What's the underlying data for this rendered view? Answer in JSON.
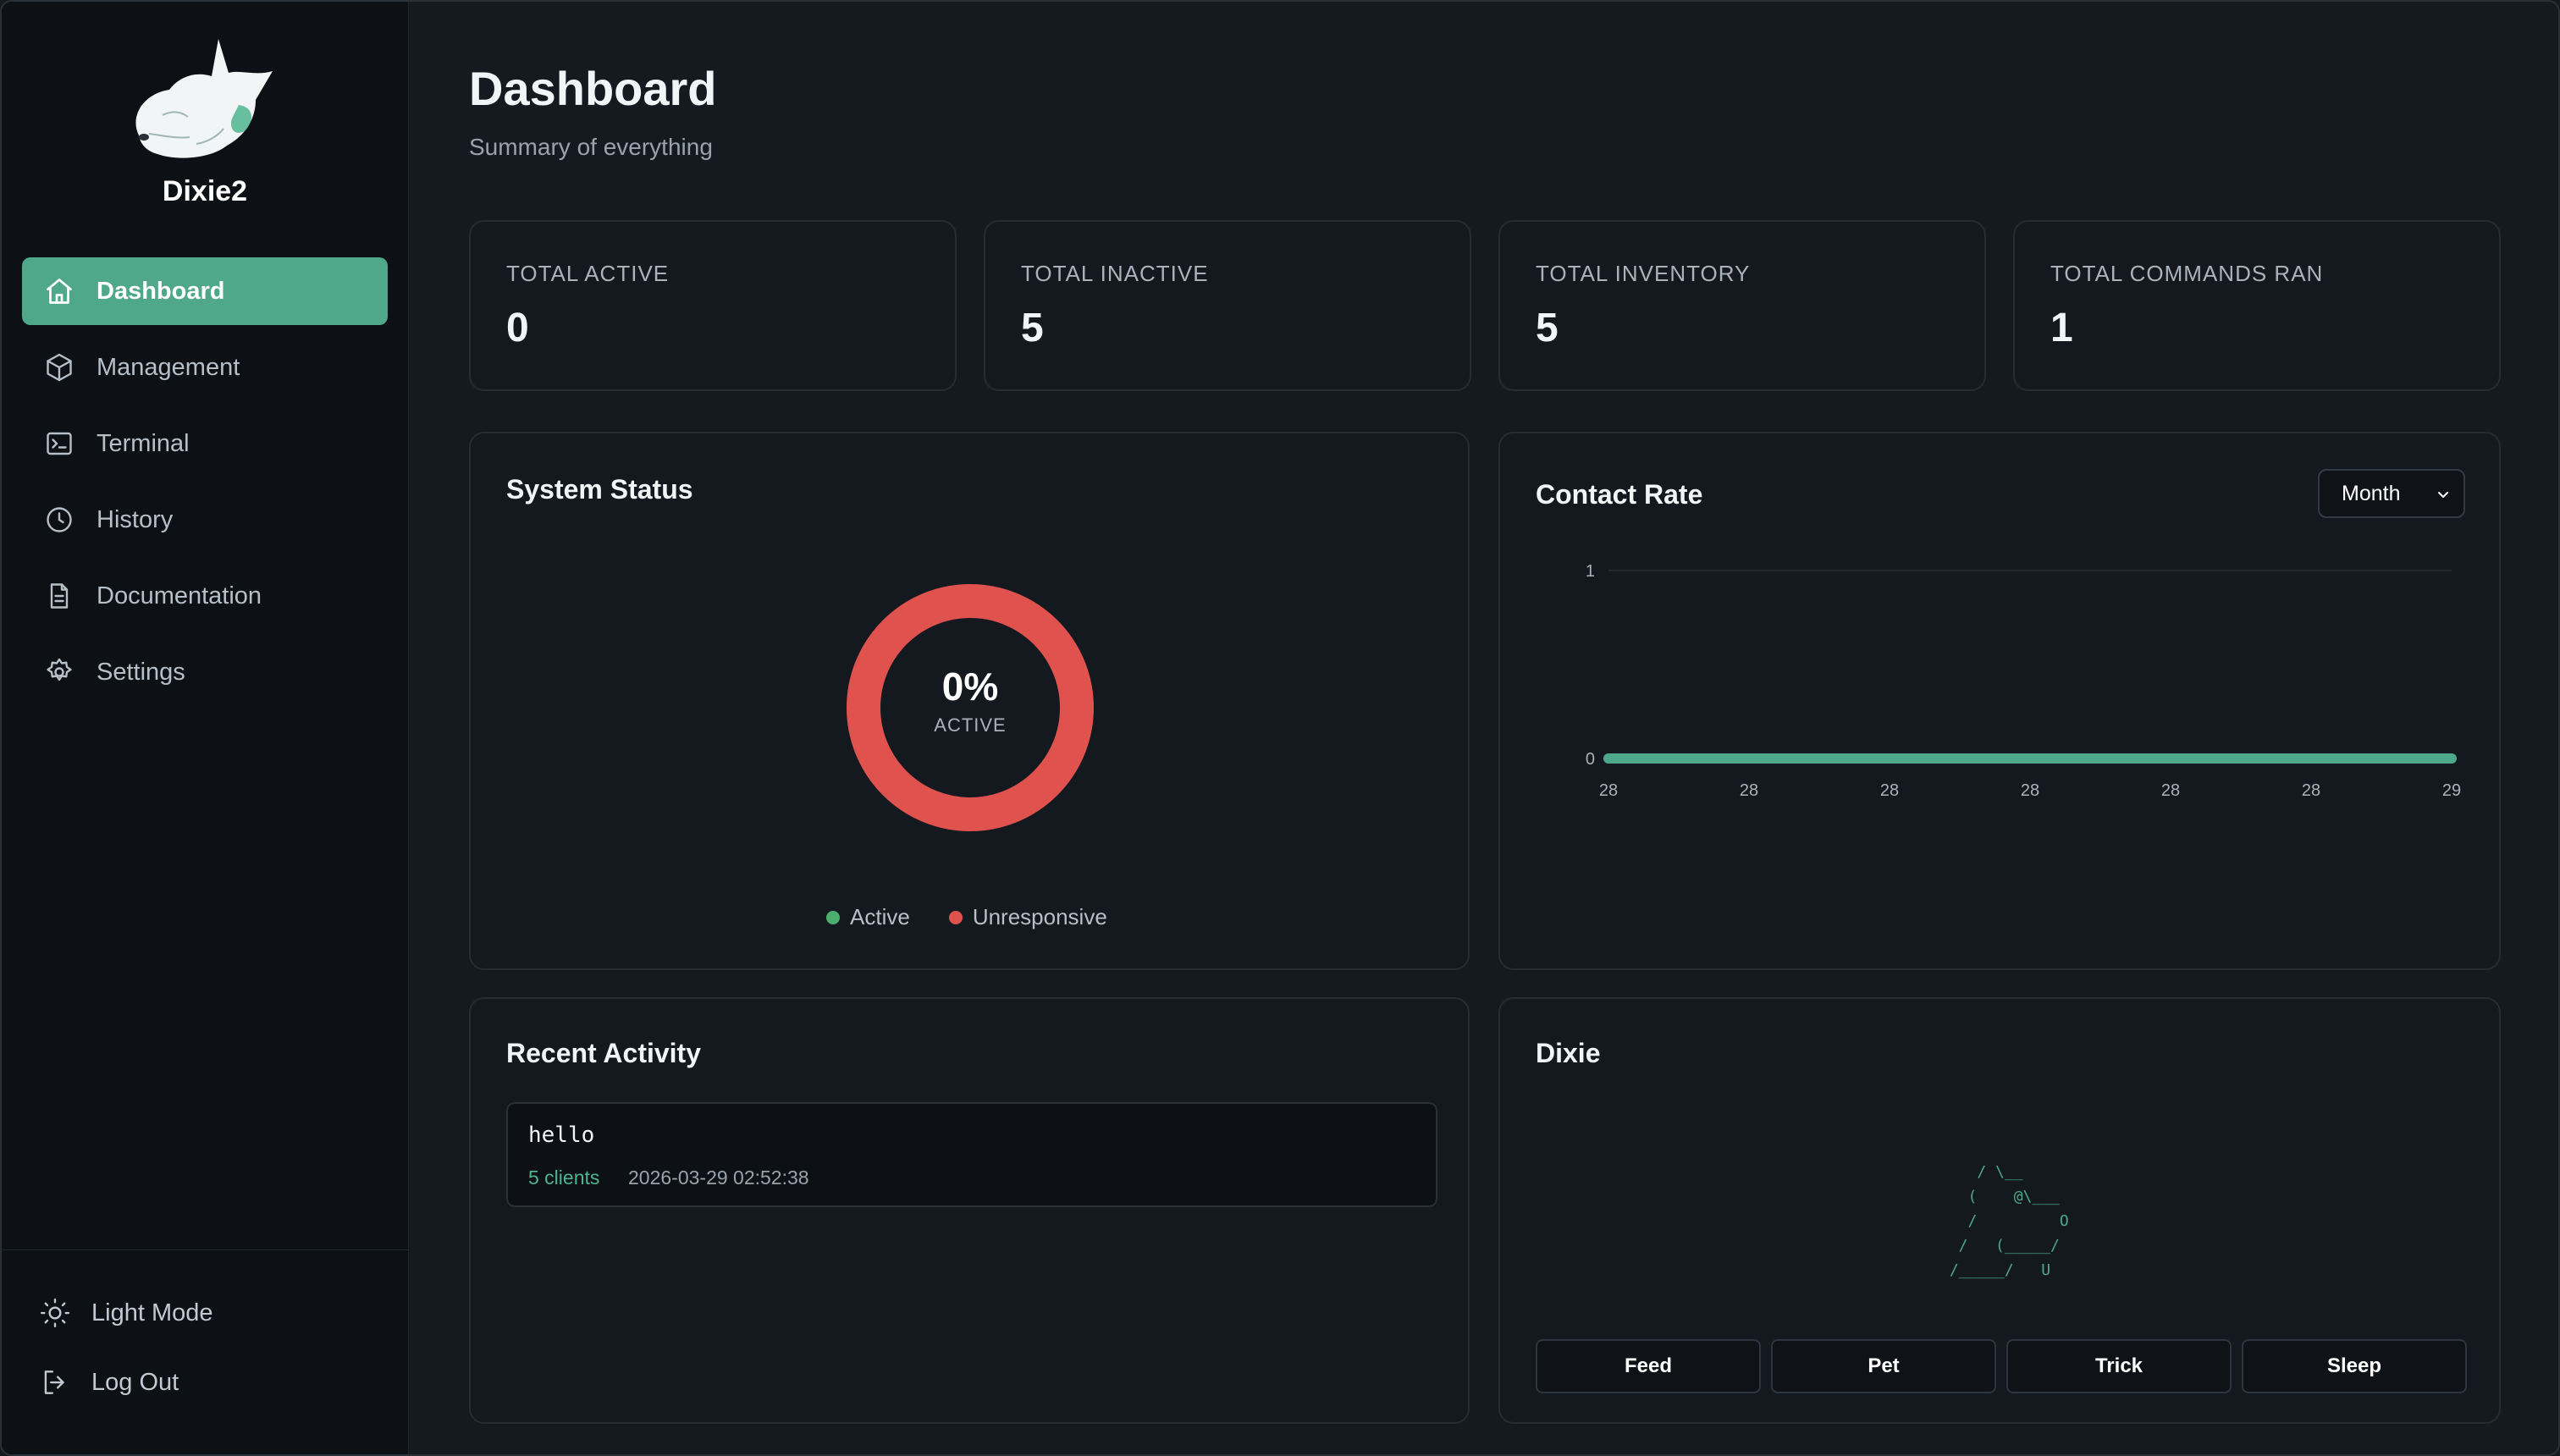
{
  "sidebar": {
    "brand": "Dixie2",
    "nav": [
      {
        "label": "Dashboard",
        "icon": "home-icon",
        "active": true
      },
      {
        "label": "Management",
        "icon": "box-icon"
      },
      {
        "label": "Terminal",
        "icon": "terminal-icon"
      },
      {
        "label": "History",
        "icon": "clock-icon"
      },
      {
        "label": "Documentation",
        "icon": "document-icon"
      },
      {
        "label": "Settings",
        "icon": "gear-icon"
      }
    ],
    "footer": [
      {
        "label": "Light Mode",
        "icon": "sun-icon"
      },
      {
        "label": "Log Out",
        "icon": "logout-icon"
      }
    ]
  },
  "header": {
    "title": "Dashboard",
    "subtitle": "Summary of everything"
  },
  "stats": [
    {
      "label": "TOTAL ACTIVE",
      "value": "0"
    },
    {
      "label": "TOTAL INACTIVE",
      "value": "5"
    },
    {
      "label": "TOTAL INVENTORY",
      "value": "5"
    },
    {
      "label": "TOTAL COMMANDS RAN",
      "value": "1"
    }
  ],
  "system_status": {
    "title": "System Status",
    "percent": "0%",
    "percent_label": "ACTIVE",
    "legend": [
      {
        "label": "Active",
        "color": "#4caf70"
      },
      {
        "label": "Unresponsive",
        "color": "#e0524d"
      }
    ]
  },
  "contact_rate": {
    "title": "Contact Rate",
    "range_select": "Month"
  },
  "recent_activity": {
    "title": "Recent Activity",
    "items": [
      {
        "command": "hello",
        "clients": "5 clients",
        "timestamp": "2026-03-29 02:52:38"
      }
    ]
  },
  "dixie": {
    "title": "Dixie",
    "ascii": "    / \\__\n   (    @\\___\n   /         O\n  /   (_____/\n /_____/   U",
    "actions": [
      "Feed",
      "Pet",
      "Trick",
      "Sleep"
    ]
  },
  "colors": {
    "accent": "#4fa88a",
    "unresponsive": "#e0524d",
    "active": "#4caf70"
  },
  "chart_data": [
    {
      "type": "pie",
      "title": "System Status",
      "labels": [
        "Active",
        "Unresponsive"
      ],
      "values": [
        0,
        5
      ]
    },
    {
      "type": "line",
      "title": "Contact Rate",
      "x": [
        "28",
        "28",
        "28",
        "28",
        "28",
        "28",
        "29"
      ],
      "series": [
        {
          "values": [
            0,
            0,
            0,
            0,
            0,
            0,
            0
          ]
        }
      ],
      "ylim": [
        0,
        1
      ],
      "yticks": [
        "0",
        "1"
      ],
      "grid": true
    }
  ]
}
